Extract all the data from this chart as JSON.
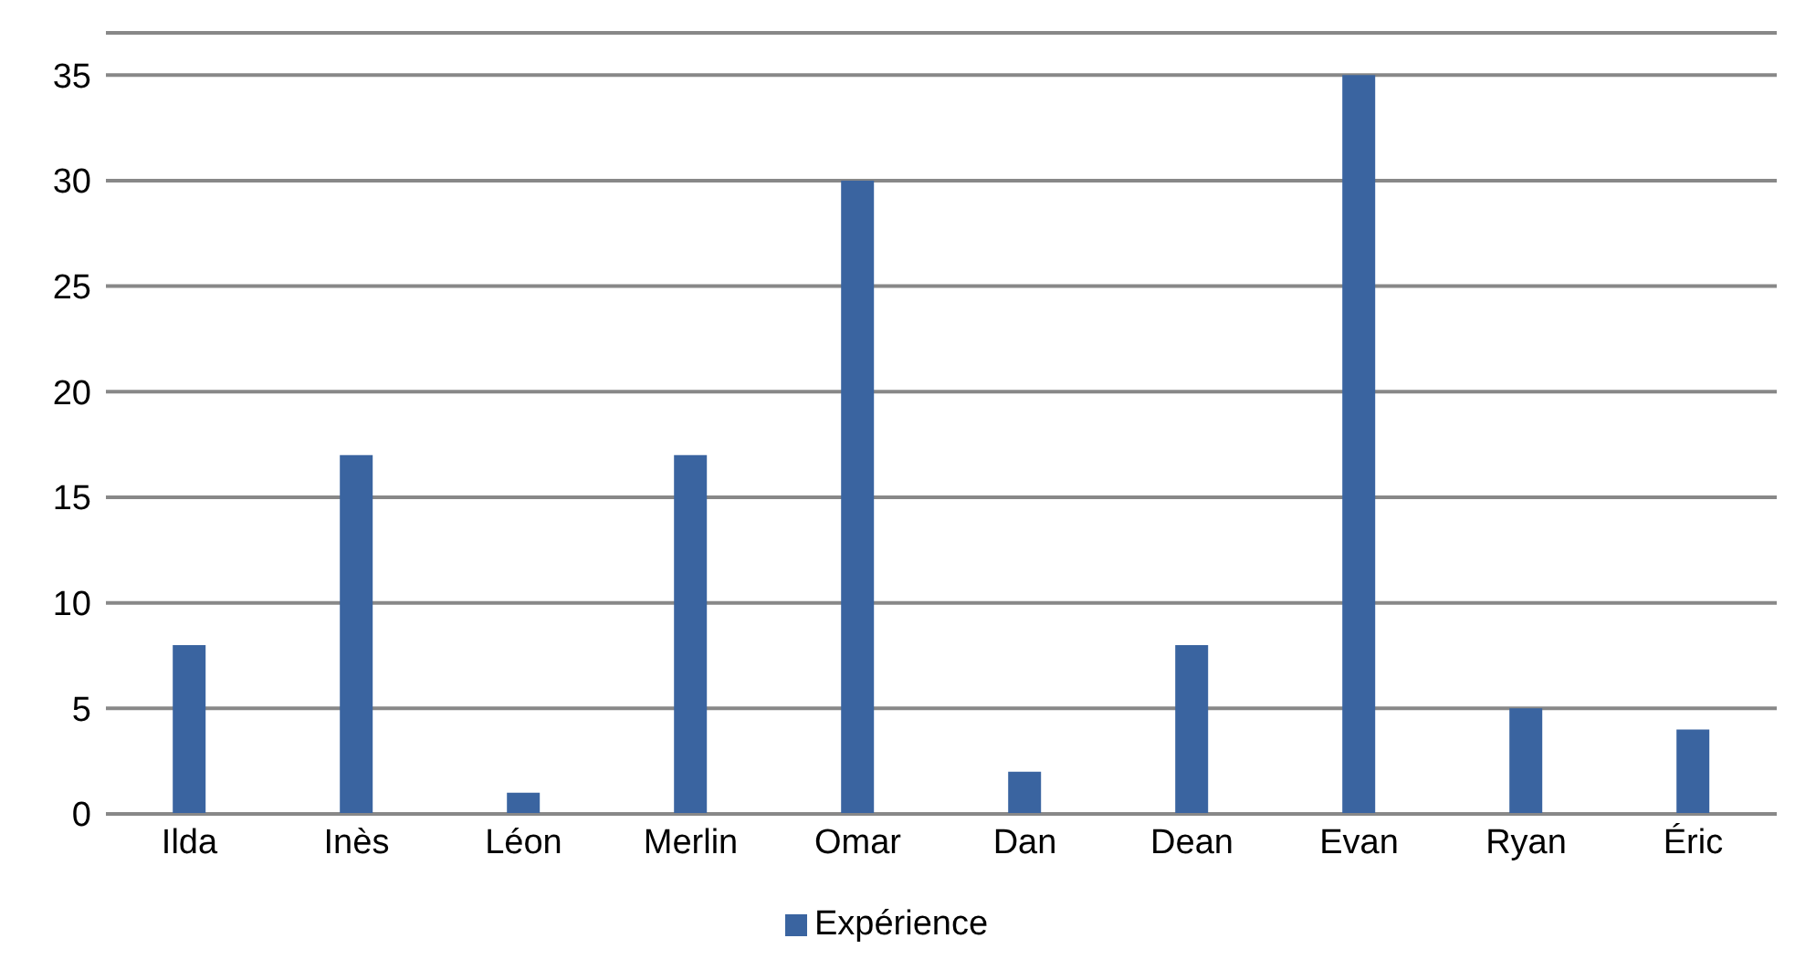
{
  "chart_data": {
    "type": "bar",
    "categories": [
      "Ilda",
      "Inès",
      "Léon",
      "Merlin",
      "Omar",
      "Dan",
      "Dean",
      "Evan",
      "Ryan",
      "Éric"
    ],
    "series": [
      {
        "name": "Expérience",
        "color": "#3a64a0",
        "values": [
          8,
          17,
          1,
          17,
          30,
          2,
          8,
          35,
          5,
          4
        ]
      }
    ],
    "ylim": [
      0,
      37
    ],
    "yticks": [
      0,
      5,
      10,
      15,
      20,
      25,
      30,
      35
    ],
    "grid": "y",
    "legend": "bottom"
  }
}
